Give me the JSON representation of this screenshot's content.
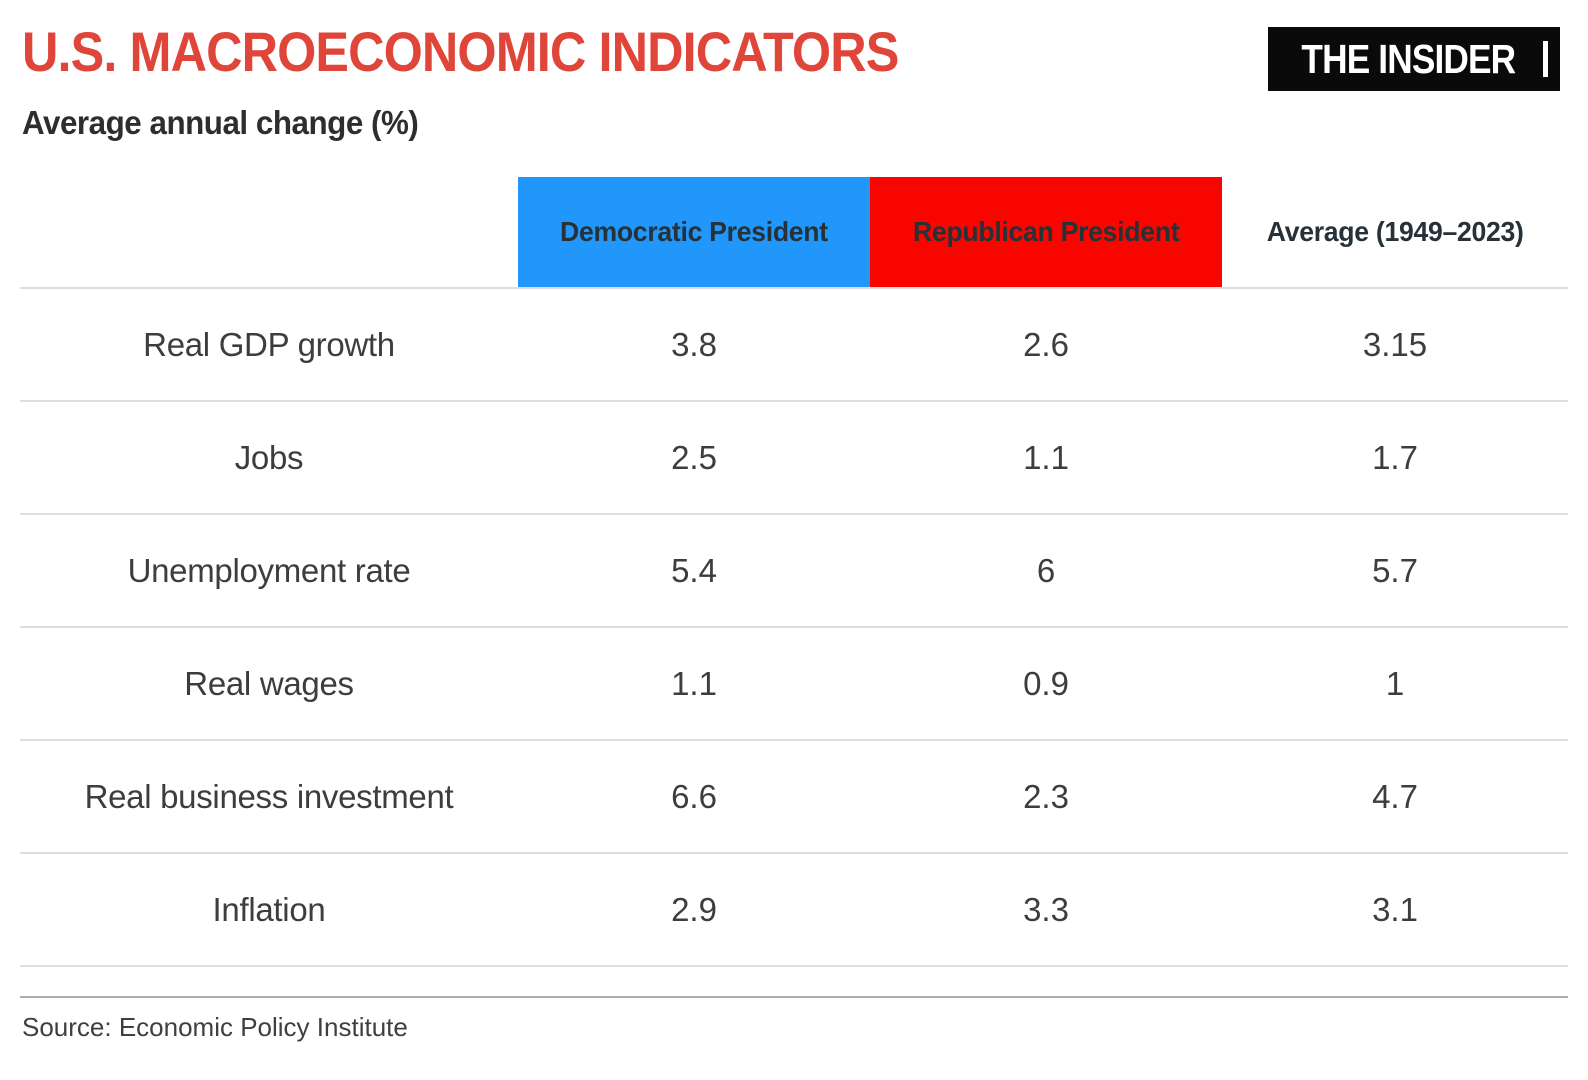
{
  "masthead": {
    "title": "U.S. MACROECONOMIC INDICATORS",
    "subtitle": "Average annual change (%)",
    "logo_text": "THE INSIDER"
  },
  "chart_data": {
    "type": "table",
    "title": "U.S. MACROECONOMIC INDICATORS",
    "subtitle": "Average annual change (%)",
    "columns": [
      "Democratic President",
      "Republican President",
      "Average (1949–2023)"
    ],
    "rows": [
      {
        "label": "Real GDP growth",
        "values": [
          3.8,
          2.6,
          3.15
        ]
      },
      {
        "label": "Jobs",
        "values": [
          2.5,
          1.1,
          1.7
        ]
      },
      {
        "label": "Unemployment rate",
        "values": [
          5.4,
          6,
          5.7
        ]
      },
      {
        "label": "Real wages",
        "values": [
          1.1,
          0.9,
          1
        ]
      },
      {
        "label": "Real business investment",
        "values": [
          6.6,
          2.3,
          4.7
        ]
      },
      {
        "label": "Inflation",
        "values": [
          2.9,
          3.3,
          3.1
        ]
      }
    ],
    "source": "Source: Economic Policy Institute",
    "colors": {
      "title_red": "#e0453a",
      "democratic_blue": "#2196fb",
      "republican_red": "#f90500",
      "header_text": "#263238",
      "body_text": "#3d3d3d",
      "row_divider": "#dedede",
      "footer_divider": "#aeaeae",
      "logo_background": "#0a0a0a",
      "logo_text": "#ffffff"
    }
  },
  "footer": {
    "source": "Source: Economic Policy Institute"
  }
}
